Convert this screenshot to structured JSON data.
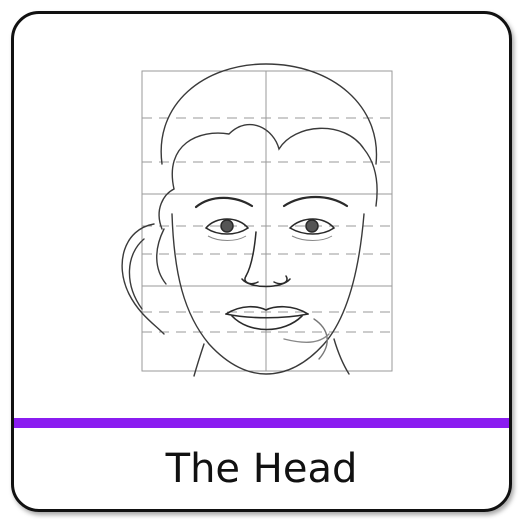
{
  "card": {
    "title": "The Head",
    "accent_color": "#8a1cf0",
    "illustration_icon": "pencil-sketch-head-with-proportion-grid"
  }
}
